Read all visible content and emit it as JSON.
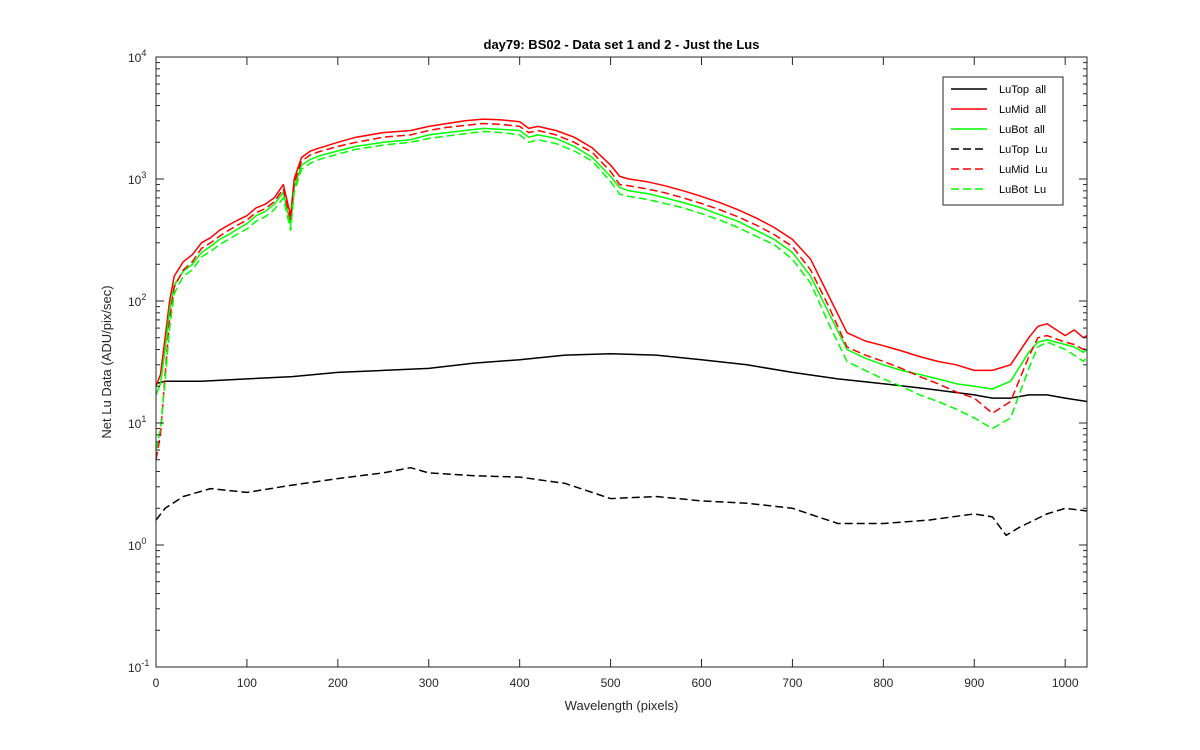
{
  "chart_data": {
    "type": "line",
    "title": "day79: BS02 - Data set 1 and 2 - Just the Lus",
    "xlabel": "Wavelength (pixels)",
    "ylabel": "Net Lu Data (ADU/pix/sec)",
    "xlim": [
      0,
      1024
    ],
    "ylim": [
      0.1,
      10000
    ],
    "yscale": "log",
    "grid": false,
    "legend_position": "top-right",
    "x_ticks": [
      "0",
      "100",
      "200",
      "300",
      "400",
      "500",
      "600",
      "700",
      "800",
      "900",
      "1000"
    ],
    "y_ticks": [
      {
        "base": "10",
        "exp": "-1"
      },
      {
        "base": "10",
        "exp": "0"
      },
      {
        "base": "10",
        "exp": "1"
      },
      {
        "base": "10",
        "exp": "2"
      },
      {
        "base": "10",
        "exp": "3"
      },
      {
        "base": "10",
        "exp": "4"
      }
    ],
    "series": [
      {
        "name": "LuTop  all",
        "color": "#000000",
        "style": "solid",
        "x": [
          0,
          10,
          50,
          100,
          150,
          200,
          250,
          300,
          350,
          400,
          450,
          500,
          550,
          600,
          650,
          700,
          750,
          800,
          850,
          900,
          920,
          940,
          960,
          980,
          1000,
          1024
        ],
        "y": [
          21,
          22,
          22,
          23,
          24,
          26,
          27,
          28,
          31,
          33,
          36,
          37,
          36,
          33,
          30,
          26,
          23,
          21,
          19,
          17,
          16,
          16,
          17,
          17,
          16,
          15
        ]
      },
      {
        "name": "LuMid  all",
        "color": "#ff0000",
        "style": "solid",
        "x": [
          0,
          5,
          10,
          15,
          20,
          30,
          40,
          50,
          60,
          70,
          80,
          90,
          100,
          110,
          120,
          130,
          140,
          148,
          152,
          160,
          170,
          180,
          200,
          220,
          250,
          280,
          300,
          320,
          340,
          360,
          380,
          400,
          410,
          420,
          440,
          460,
          480,
          500,
          510,
          520,
          540,
          560,
          580,
          600,
          620,
          640,
          660,
          680,
          700,
          720,
          740,
          760,
          780,
          800,
          820,
          840,
          860,
          880,
          900,
          920,
          940,
          960,
          970,
          980,
          1000,
          1010,
          1020,
          1024
        ],
        "y": [
          20,
          25,
          50,
          100,
          160,
          210,
          240,
          300,
          330,
          380,
          420,
          460,
          500,
          580,
          620,
          700,
          900,
          500,
          1000,
          1500,
          1700,
          1800,
          2000,
          2200,
          2400,
          2500,
          2700,
          2850,
          3000,
          3100,
          3050,
          2950,
          2600,
          2700,
          2500,
          2200,
          1800,
          1300,
          1050,
          1000,
          950,
          880,
          800,
          720,
          640,
          560,
          480,
          400,
          320,
          220,
          110,
          55,
          47,
          43,
          39,
          35,
          32,
          30,
          27,
          27,
          30,
          50,
          62,
          65,
          52,
          58,
          50,
          52
        ]
      },
      {
        "name": "LuBot  all",
        "color": "#00ff00",
        "style": "solid",
        "x": [
          0,
          5,
          10,
          15,
          20,
          30,
          40,
          50,
          60,
          70,
          80,
          90,
          100,
          110,
          120,
          130,
          140,
          148,
          152,
          160,
          170,
          180,
          200,
          220,
          250,
          280,
          300,
          320,
          340,
          360,
          380,
          400,
          410,
          420,
          440,
          460,
          480,
          500,
          510,
          520,
          540,
          560,
          580,
          600,
          620,
          640,
          660,
          680,
          700,
          720,
          740,
          760,
          780,
          800,
          820,
          840,
          860,
          880,
          900,
          920,
          940,
          960,
          970,
          980,
          1000,
          1010,
          1020,
          1024
        ],
        "y": [
          17,
          21,
          40,
          85,
          135,
          175,
          200,
          250,
          280,
          320,
          350,
          390,
          430,
          500,
          540,
          620,
          780,
          420,
          850,
          1300,
          1450,
          1550,
          1700,
          1850,
          2000,
          2100,
          2300,
          2400,
          2500,
          2600,
          2550,
          2500,
          2200,
          2300,
          2150,
          1850,
          1500,
          1050,
          850,
          800,
          760,
          700,
          640,
          580,
          510,
          450,
          380,
          320,
          250,
          160,
          80,
          40,
          34,
          30,
          27,
          25,
          23,
          21,
          20,
          19,
          22,
          38,
          46,
          48,
          44,
          42,
          38,
          40
        ]
      },
      {
        "name": "LuTop  Lu",
        "color": "#000000",
        "style": "dashed",
        "x": [
          0,
          10,
          30,
          60,
          100,
          150,
          200,
          250,
          280,
          300,
          350,
          400,
          450,
          500,
          550,
          600,
          650,
          700,
          750,
          800,
          850,
          900,
          920,
          935,
          950,
          980,
          1000,
          1024
        ],
        "y": [
          1.6,
          2.0,
          2.5,
          2.9,
          2.7,
          3.1,
          3.5,
          3.9,
          4.3,
          3.9,
          3.7,
          3.6,
          3.2,
          2.4,
          2.5,
          2.3,
          2.2,
          2.0,
          1.5,
          1.5,
          1.6,
          1.8,
          1.7,
          1.2,
          1.4,
          1.8,
          2.0,
          1.9
        ]
      },
      {
        "name": "LuMid  Lu",
        "color": "#ff0000",
        "style": "dashed",
        "x": [
          0,
          5,
          10,
          15,
          20,
          30,
          40,
          50,
          60,
          70,
          80,
          90,
          100,
          110,
          120,
          130,
          140,
          148,
          152,
          160,
          170,
          180,
          200,
          220,
          250,
          280,
          300,
          320,
          340,
          360,
          380,
          400,
          410,
          420,
          440,
          460,
          480,
          500,
          510,
          520,
          540,
          560,
          580,
          600,
          620,
          640,
          660,
          680,
          700,
          720,
          740,
          760,
          780,
          800,
          820,
          840,
          860,
          880,
          900,
          920,
          940,
          960,
          970,
          980,
          1000,
          1010,
          1020,
          1024
        ],
        "y": [
          5,
          8,
          25,
          70,
          130,
          180,
          210,
          270,
          300,
          340,
          380,
          420,
          460,
          530,
          570,
          650,
          830,
          460,
          920,
          1400,
          1580,
          1680,
          1850,
          2000,
          2200,
          2300,
          2500,
          2650,
          2750,
          2850,
          2800,
          2700,
          2400,
          2500,
          2300,
          2000,
          1650,
          1150,
          900,
          880,
          830,
          770,
          700,
          630,
          560,
          490,
          420,
          350,
          280,
          180,
          90,
          42,
          36,
          32,
          28,
          24,
          21,
          18,
          16,
          12,
          15,
          35,
          50,
          52,
          46,
          44,
          40,
          42
        ]
      },
      {
        "name": "LuBot  Lu",
        "color": "#00ff00",
        "style": "dashed",
        "x": [
          0,
          5,
          10,
          15,
          20,
          30,
          40,
          50,
          60,
          70,
          80,
          90,
          100,
          110,
          120,
          130,
          140,
          148,
          152,
          160,
          170,
          180,
          200,
          220,
          250,
          280,
          300,
          320,
          340,
          360,
          380,
          400,
          410,
          420,
          440,
          460,
          480,
          500,
          510,
          520,
          540,
          560,
          580,
          600,
          620,
          640,
          660,
          680,
          700,
          720,
          740,
          760,
          780,
          800,
          820,
          840,
          860,
          880,
          900,
          920,
          940,
          960,
          970,
          980,
          1000,
          1010,
          1020,
          1024
        ],
        "y": [
          6,
          9,
          22,
          60,
          115,
          160,
          180,
          230,
          255,
          290,
          320,
          355,
          390,
          450,
          490,
          560,
          700,
          380,
          780,
          1200,
          1350,
          1450,
          1600,
          1750,
          1900,
          2000,
          2150,
          2250,
          2350,
          2450,
          2400,
          2300,
          2000,
          2100,
          1950,
          1700,
          1400,
          950,
          750,
          720,
          680,
          630,
          580,
          520,
          460,
          400,
          340,
          290,
          220,
          140,
          65,
          32,
          27,
          23,
          20,
          17,
          15,
          13,
          11,
          9,
          11,
          28,
          42,
          46,
          40,
          36,
          32,
          35
        ]
      }
    ]
  }
}
